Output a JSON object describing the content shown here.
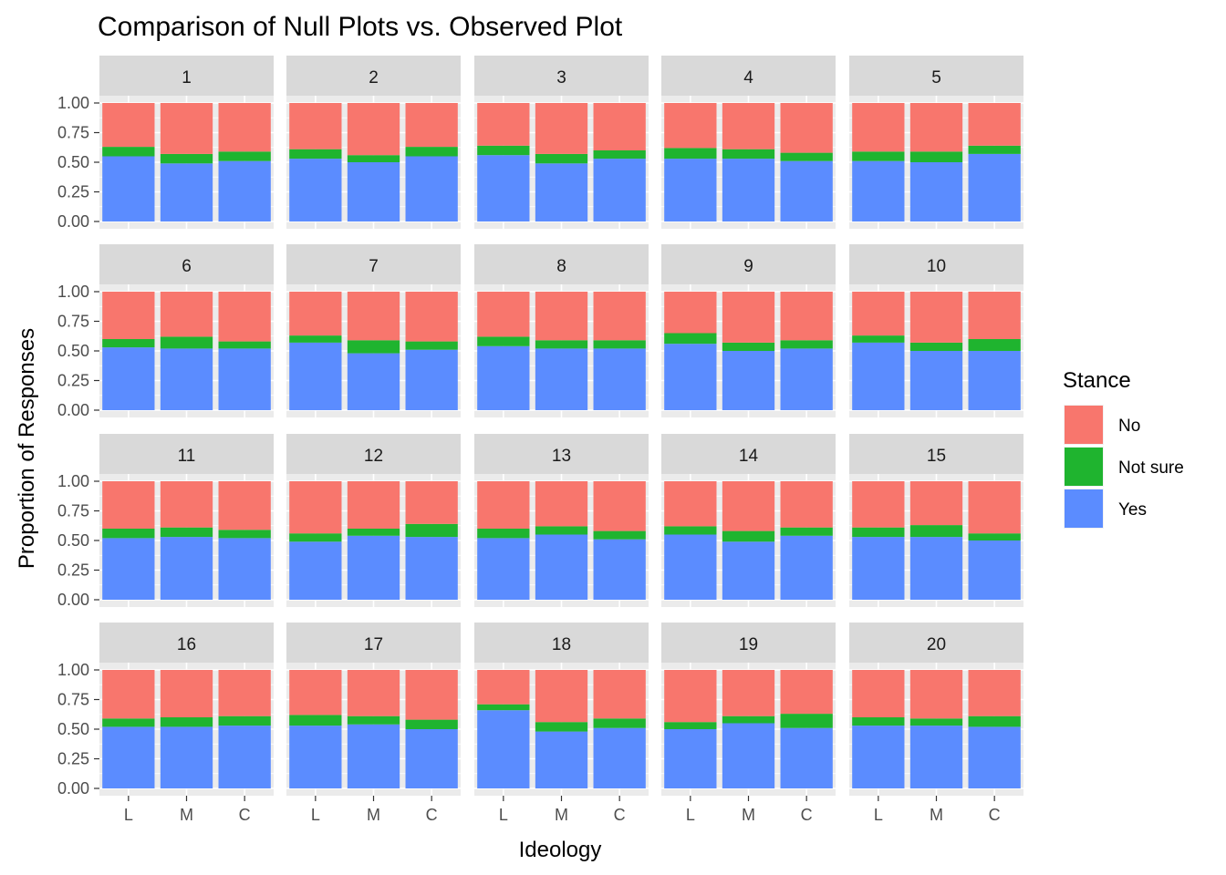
{
  "chart_data": {
    "type": "bar",
    "title": "Comparison of Null Plots vs. Observed Plot",
    "xlabel": "Ideology",
    "ylabel": "Proportion of Responses",
    "ylim": [
      0,
      1
    ],
    "yticks": [
      "0.00",
      "0.25",
      "0.50",
      "0.75",
      "1.00"
    ],
    "ytick_values": [
      0,
      0.25,
      0.5,
      0.75,
      1
    ],
    "categories": [
      "L",
      "M",
      "C"
    ],
    "stacking": "fill",
    "grid": true,
    "legend": {
      "title": "Stance",
      "position": "right",
      "entries": [
        {
          "name": "No",
          "color": "#F8766D"
        },
        {
          "name": "Not sure",
          "color": "#1FB42F"
        },
        {
          "name": "Yes",
          "color": "#5B8CFF"
        }
      ]
    },
    "colors": {
      "No": "#F8766D",
      "Not sure": "#1FB42F",
      "Yes": "#5B8CFF",
      "panel": "#EBEBEB",
      "strip": "#D9D9D9"
    },
    "panels": [
      {
        "label": "1",
        "yes": [
          0.55,
          0.49,
          0.51
        ],
        "not_sure": [
          0.08,
          0.08,
          0.08
        ],
        "no": [
          0.37,
          0.43,
          0.41
        ]
      },
      {
        "label": "2",
        "yes": [
          0.53,
          0.5,
          0.55
        ],
        "not_sure": [
          0.08,
          0.06,
          0.08
        ],
        "no": [
          0.39,
          0.44,
          0.37
        ]
      },
      {
        "label": "3",
        "yes": [
          0.56,
          0.49,
          0.53
        ],
        "not_sure": [
          0.08,
          0.08,
          0.07
        ],
        "no": [
          0.36,
          0.43,
          0.4
        ]
      },
      {
        "label": "4",
        "yes": [
          0.53,
          0.53,
          0.51
        ],
        "not_sure": [
          0.09,
          0.08,
          0.07
        ],
        "no": [
          0.38,
          0.39,
          0.42
        ]
      },
      {
        "label": "5",
        "yes": [
          0.51,
          0.5,
          0.57
        ],
        "not_sure": [
          0.08,
          0.09,
          0.07
        ],
        "no": [
          0.41,
          0.41,
          0.36
        ]
      },
      {
        "label": "6",
        "yes": [
          0.53,
          0.52,
          0.52
        ],
        "not_sure": [
          0.07,
          0.1,
          0.06
        ],
        "no": [
          0.4,
          0.38,
          0.42
        ]
      },
      {
        "label": "7",
        "yes": [
          0.57,
          0.48,
          0.51
        ],
        "not_sure": [
          0.06,
          0.11,
          0.07
        ],
        "no": [
          0.37,
          0.41,
          0.42
        ]
      },
      {
        "label": "8",
        "yes": [
          0.54,
          0.52,
          0.52
        ],
        "not_sure": [
          0.08,
          0.07,
          0.07
        ],
        "no": [
          0.38,
          0.41,
          0.41
        ]
      },
      {
        "label": "9",
        "yes": [
          0.56,
          0.5,
          0.52
        ],
        "not_sure": [
          0.09,
          0.07,
          0.07
        ],
        "no": [
          0.35,
          0.43,
          0.41
        ]
      },
      {
        "label": "10",
        "yes": [
          0.57,
          0.5,
          0.5
        ],
        "not_sure": [
          0.06,
          0.07,
          0.1
        ],
        "no": [
          0.37,
          0.43,
          0.4
        ]
      },
      {
        "label": "11",
        "yes": [
          0.52,
          0.53,
          0.52
        ],
        "not_sure": [
          0.08,
          0.08,
          0.07
        ],
        "no": [
          0.4,
          0.39,
          0.41
        ]
      },
      {
        "label": "12",
        "yes": [
          0.49,
          0.54,
          0.53
        ],
        "not_sure": [
          0.07,
          0.06,
          0.11
        ],
        "no": [
          0.44,
          0.4,
          0.36
        ]
      },
      {
        "label": "13",
        "yes": [
          0.52,
          0.55,
          0.51
        ],
        "not_sure": [
          0.08,
          0.07,
          0.07
        ],
        "no": [
          0.4,
          0.38,
          0.42
        ]
      },
      {
        "label": "14",
        "yes": [
          0.55,
          0.49,
          0.54
        ],
        "not_sure": [
          0.07,
          0.09,
          0.07
        ],
        "no": [
          0.38,
          0.42,
          0.39
        ]
      },
      {
        "label": "15",
        "yes": [
          0.53,
          0.53,
          0.5
        ],
        "not_sure": [
          0.08,
          0.1,
          0.06
        ],
        "no": [
          0.39,
          0.37,
          0.44
        ]
      },
      {
        "label": "16",
        "yes": [
          0.52,
          0.52,
          0.53
        ],
        "not_sure": [
          0.07,
          0.08,
          0.08
        ],
        "no": [
          0.41,
          0.4,
          0.39
        ]
      },
      {
        "label": "17",
        "yes": [
          0.53,
          0.54,
          0.5
        ],
        "not_sure": [
          0.09,
          0.07,
          0.08
        ],
        "no": [
          0.38,
          0.39,
          0.42
        ]
      },
      {
        "label": "18",
        "yes": [
          0.66,
          0.48,
          0.51
        ],
        "not_sure": [
          0.05,
          0.08,
          0.08
        ],
        "no": [
          0.29,
          0.44,
          0.41
        ]
      },
      {
        "label": "19",
        "yes": [
          0.5,
          0.55,
          0.51
        ],
        "not_sure": [
          0.06,
          0.06,
          0.12
        ],
        "no": [
          0.44,
          0.39,
          0.37
        ]
      },
      {
        "label": "20",
        "yes": [
          0.53,
          0.53,
          0.52
        ],
        "not_sure": [
          0.07,
          0.06,
          0.09
        ],
        "no": [
          0.4,
          0.41,
          0.39
        ]
      }
    ]
  }
}
